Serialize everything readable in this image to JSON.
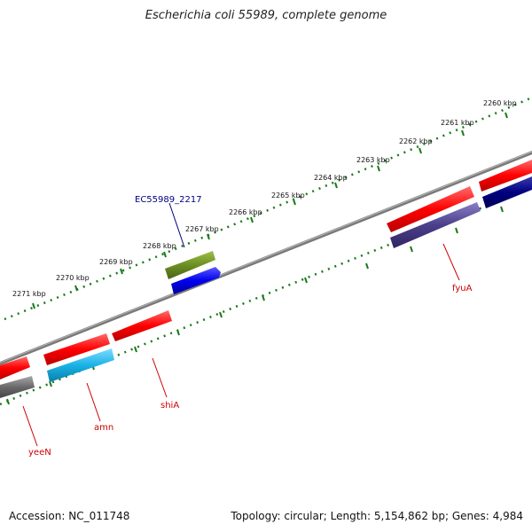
{
  "title": "Escherichia coli 55989, complete genome",
  "footer": {
    "accession": "Accession: NC_011748",
    "stats": "Topology: circular; Length: 5,154,862 bp; Genes: 4,984"
  },
  "scale_ticks": [
    "2260 kbp",
    "2261 kbp",
    "2262 kbp",
    "2263 kbp",
    "2264 kbp",
    "2265 kbp",
    "2266 kbp",
    "2267 kbp",
    "2268 kbp",
    "2269 kbp",
    "2270 kbp",
    "2271 kbp"
  ],
  "gene_labels": {
    "ec55989_2217": "EC55989_2217",
    "fyua": "fyuA",
    "shia": "shiA",
    "amn": "amn",
    "yeen": "yeeN"
  },
  "colors": {
    "backbone": "#7a7a7a",
    "tick": "#1a7a1a",
    "red_gene": "#ff0000",
    "blue_gene": "#0000ee",
    "olive_gene": "#6b8e23",
    "purple_gene": "#4b3f8a",
    "navy_gene": "#000080",
    "cyan_gene": "#1ab2e6",
    "gray_gene": "#6a6a6a",
    "label_red": "#cc0000",
    "label_blue": "#000080"
  }
}
